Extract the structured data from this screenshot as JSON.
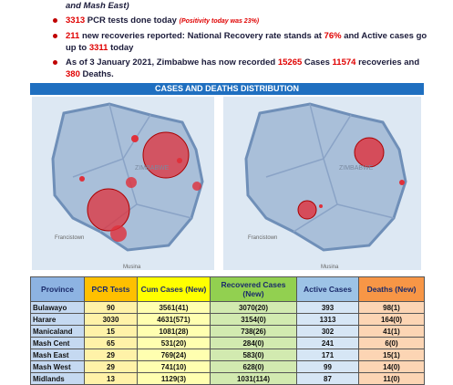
{
  "summary": {
    "continuation": "and Mash East)",
    "bullets": [
      [
        "3313",
        " PCR tests done today ",
        "(Positivity today was 23%)"
      ],
      [
        "211",
        " new recoveries reported: National Recovery rate stands at ",
        "76%",
        " and Active cases go up to ",
        "3311",
        " today"
      ],
      [
        "As of 3 January 2021, Zimbabwe has now recorded ",
        "15265",
        " Cases ",
        "11574",
        " recoveries and ",
        "380",
        " Deaths."
      ]
    ]
  },
  "section_title": "CASES AND DEATHS DISTRIBUTION",
  "maps": [
    {
      "country": "ZIMBABWE",
      "places": [
        "Francistown",
        "Musina"
      ]
    },
    {
      "country": "ZIMBABWE",
      "places": [
        "Francistown",
        "Musina"
      ]
    }
  ],
  "table": {
    "header": [
      "Province",
      "PCR Tests",
      "Cum Cases (New)",
      "Recovered Cases (New)",
      "Active Cases",
      "Deaths (New)"
    ],
    "rows": [
      [
        "Bulawayo",
        "90",
        "3561(41)",
        "3070(20)",
        "393",
        "98(1)"
      ],
      [
        "Harare",
        "3030",
        "4631(571)",
        "3154(0)",
        "1313",
        "164(0)"
      ],
      [
        "Manicaland",
        "15",
        "1081(28)",
        "738(26)",
        "302",
        "41(1)"
      ],
      [
        "Mash Cent",
        "65",
        "531(20)",
        "284(0)",
        "241",
        "6(0)"
      ],
      [
        "Mash East",
        "29",
        "769(24)",
        "583(0)",
        "171",
        "15(1)"
      ],
      [
        "Mash West",
        "29",
        "741(10)",
        "628(0)",
        "99",
        "14(0)"
      ],
      [
        "Midlands",
        "13",
        "1129(3)",
        "1031(114)",
        "87",
        "11(0)"
      ]
    ]
  }
}
